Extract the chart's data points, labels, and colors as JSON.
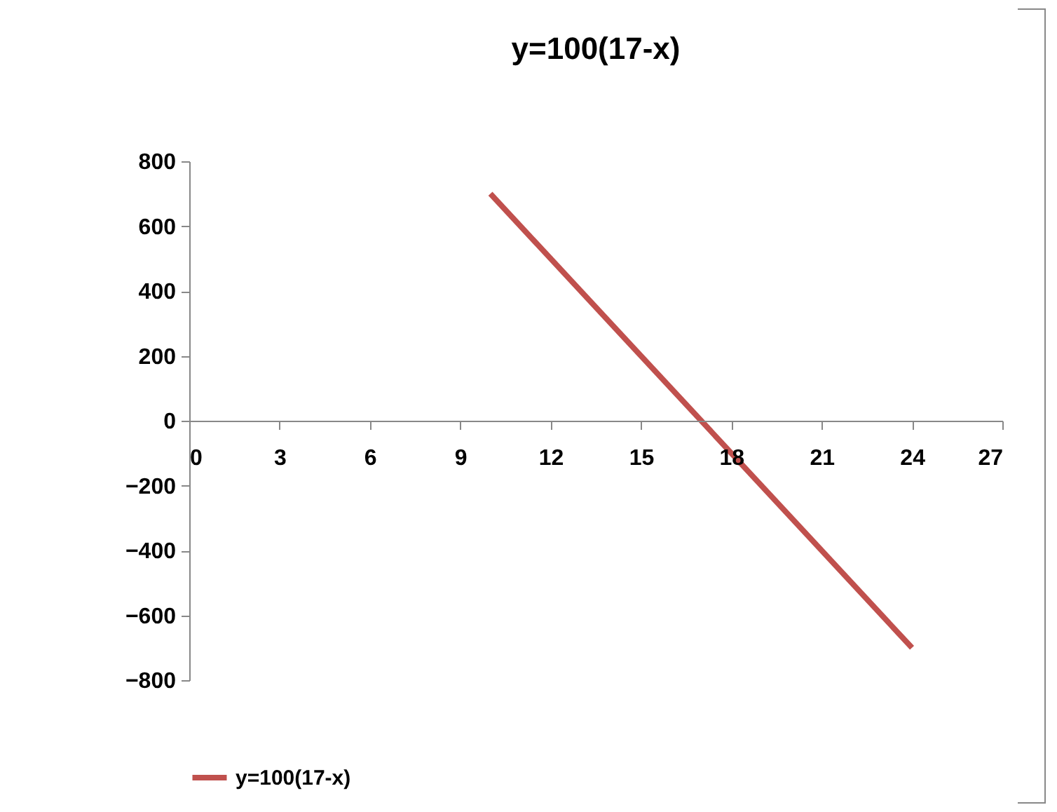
{
  "chart_data": {
    "type": "line",
    "title": "y=100(17-x)",
    "x": [
      10,
      24
    ],
    "series": [
      {
        "name": "y=100(17-x)",
        "color": "#c0504d",
        "values": [
          700,
          -700
        ]
      }
    ],
    "xlim": [
      0,
      27
    ],
    "xticks": [
      0,
      3,
      6,
      9,
      12,
      15,
      18,
      21,
      24,
      27
    ],
    "ylim": [
      -800,
      800
    ],
    "yticks": [
      -800,
      -600,
      -400,
      -200,
      0,
      200,
      400,
      600,
      800
    ],
    "grid": false,
    "legend": "bottom",
    "marker": "none",
    "line_style": "solid"
  }
}
